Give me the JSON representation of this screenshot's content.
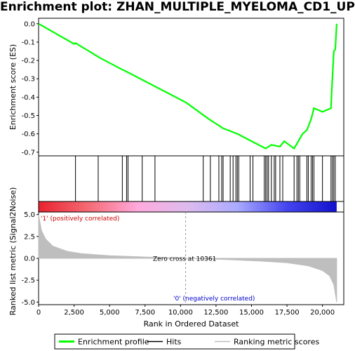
{
  "title": "Enrichment plot: ZHAN_MULTIPLE_MYELOMA_CD1_UP",
  "chart_data": {
    "type": "line",
    "x_label": "Rank in Ordered Dataset",
    "x_ticks": [
      0,
      2500,
      5000,
      7500,
      10000,
      12500,
      15000,
      17500,
      20000
    ],
    "x_tick_labels": [
      "0",
      "2,500",
      "5,000",
      "7,500",
      "10,000",
      "12,500",
      "15,000",
      "17,500",
      "20,000"
    ],
    "x_range": [
      0,
      21500
    ],
    "dataset_size": 21000,
    "top_panel": {
      "ylabel": "Enrichment score (ES)",
      "ylim": [
        -0.72,
        0.03
      ],
      "y_ticks": [
        0.0,
        -0.1,
        -0.2,
        -0.3,
        -0.4,
        -0.5,
        -0.6,
        -0.7
      ],
      "y_tick_labels": [
        "0.0",
        "-0.1",
        "-0.2",
        "-0.3",
        "-0.4",
        "-0.5",
        "-0.6",
        "-0.7"
      ],
      "series_color": "#00ff00",
      "x": [
        0,
        2500,
        2600,
        4200,
        4300,
        5900,
        6300,
        10400,
        12000,
        13000,
        14000,
        15000,
        16000,
        16400,
        17000,
        17300,
        18000,
        18300,
        18600,
        18900,
        19200,
        19400,
        20000,
        20600,
        20650,
        20800,
        20900,
        21000
      ],
      "es": [
        0.0,
        -0.11,
        -0.105,
        -0.18,
        -0.185,
        -0.25,
        -0.265,
        -0.43,
        -0.52,
        -0.57,
        -0.6,
        -0.64,
        -0.68,
        -0.66,
        -0.67,
        -0.64,
        -0.68,
        -0.64,
        -0.6,
        -0.58,
        -0.52,
        -0.46,
        -0.48,
        -0.46,
        -0.37,
        -0.15,
        -0.14,
        0.0
      ]
    },
    "hits": [
      2600,
      4200,
      5900,
      6200,
      6300,
      7300,
      8200,
      11600,
      12100,
      12700,
      12900,
      13000,
      13500,
      13700,
      13900,
      14000,
      14100,
      14900,
      15100,
      15900,
      16000,
      16100,
      16200,
      16400,
      16600,
      16700,
      17000,
      17200,
      18000,
      18200,
      18300,
      18400,
      18900,
      19000,
      19200,
      19300,
      19400,
      20000,
      20600,
      20700,
      20800,
      20900
    ],
    "heatmap_gradient": [
      "#e8232f",
      "#f56a74",
      "#ffaadd",
      "#ddbbee",
      "#aaaaff",
      "#4444ee",
      "#1111cc"
    ],
    "bottom_panel": {
      "ylabel": "Ranked list metric (Signal2Noise)",
      "ylim": [
        -5.3,
        5.3
      ],
      "y_ticks": [
        5.0,
        2.5,
        0.0,
        -2.5,
        -5.0
      ],
      "y_tick_labels": [
        "5.0",
        "2.5",
        "0.0",
        "-2.5",
        "-5.0"
      ],
      "x": [
        0,
        200,
        500,
        1000,
        2000,
        3000,
        5000,
        7500,
        10361,
        13000,
        15500,
        17500,
        19000,
        20000,
        20500,
        20800,
        21000
      ],
      "metric": [
        5.0,
        3.2,
        2.2,
        1.4,
        0.8,
        0.55,
        0.3,
        0.15,
        0.0,
        -0.12,
        -0.3,
        -0.5,
        -0.85,
        -1.4,
        -2.0,
        -3.0,
        -5.0
      ],
      "fill_color": "#bebebe",
      "zero_cross": 10361,
      "zero_cross_label": "Zero cross at 10361",
      "positive_label": "'1' (positively correlated)",
      "negative_label": "'0' (negatively correlated)"
    },
    "legend": {
      "items": [
        {
          "label": "Enrichment profile",
          "color": "#00ff00"
        },
        {
          "label": "Hits",
          "color": "#000000"
        },
        {
          "label": "Ranking metric scores",
          "color": "#bebebe"
        }
      ]
    }
  }
}
